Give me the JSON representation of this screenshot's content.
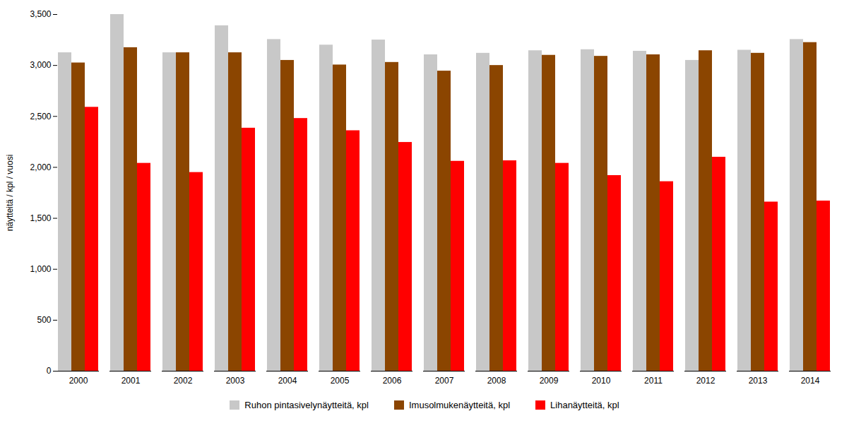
{
  "chart_data": {
    "type": "bar",
    "categories": [
      2000,
      2001,
      2002,
      2003,
      2004,
      2005,
      2006,
      2007,
      2008,
      2009,
      2010,
      2011,
      2012,
      2013,
      2014
    ],
    "series": [
      {
        "name": "Ruhon pintasivelynäytteitä, kpl",
        "color": "#C8C8C8",
        "values": [
          3125,
          3500,
          3125,
          3390,
          3255,
          3200,
          3250,
          3105,
          3120,
          3145,
          3155,
          3140,
          3050,
          3150,
          3255
        ]
      },
      {
        "name": "Imusolmukenäytteitä, kpl",
        "color": "#8B4500",
        "values": [
          3025,
          3175,
          3125,
          3125,
          3050,
          3005,
          3030,
          2945,
          3000,
          3100,
          3090,
          3105,
          3145,
          3120,
          3225
        ]
      },
      {
        "name": "Lihanäytteitä, kpl",
        "color": "#FF0000",
        "values": [
          2590,
          2040,
          1950,
          2385,
          2480,
          2360,
          2245,
          2060,
          2065,
          2040,
          1920,
          1860,
          2100,
          1660,
          1670
        ]
      }
    ],
    "ylabel": "näytteitä / kpl / vuosi",
    "ylim": [
      0,
      3500
    ],
    "yticks": [
      0,
      500,
      1000,
      1500,
      2000,
      2500,
      3000,
      3500
    ],
    "grid": false,
    "legend": "bottom"
  }
}
